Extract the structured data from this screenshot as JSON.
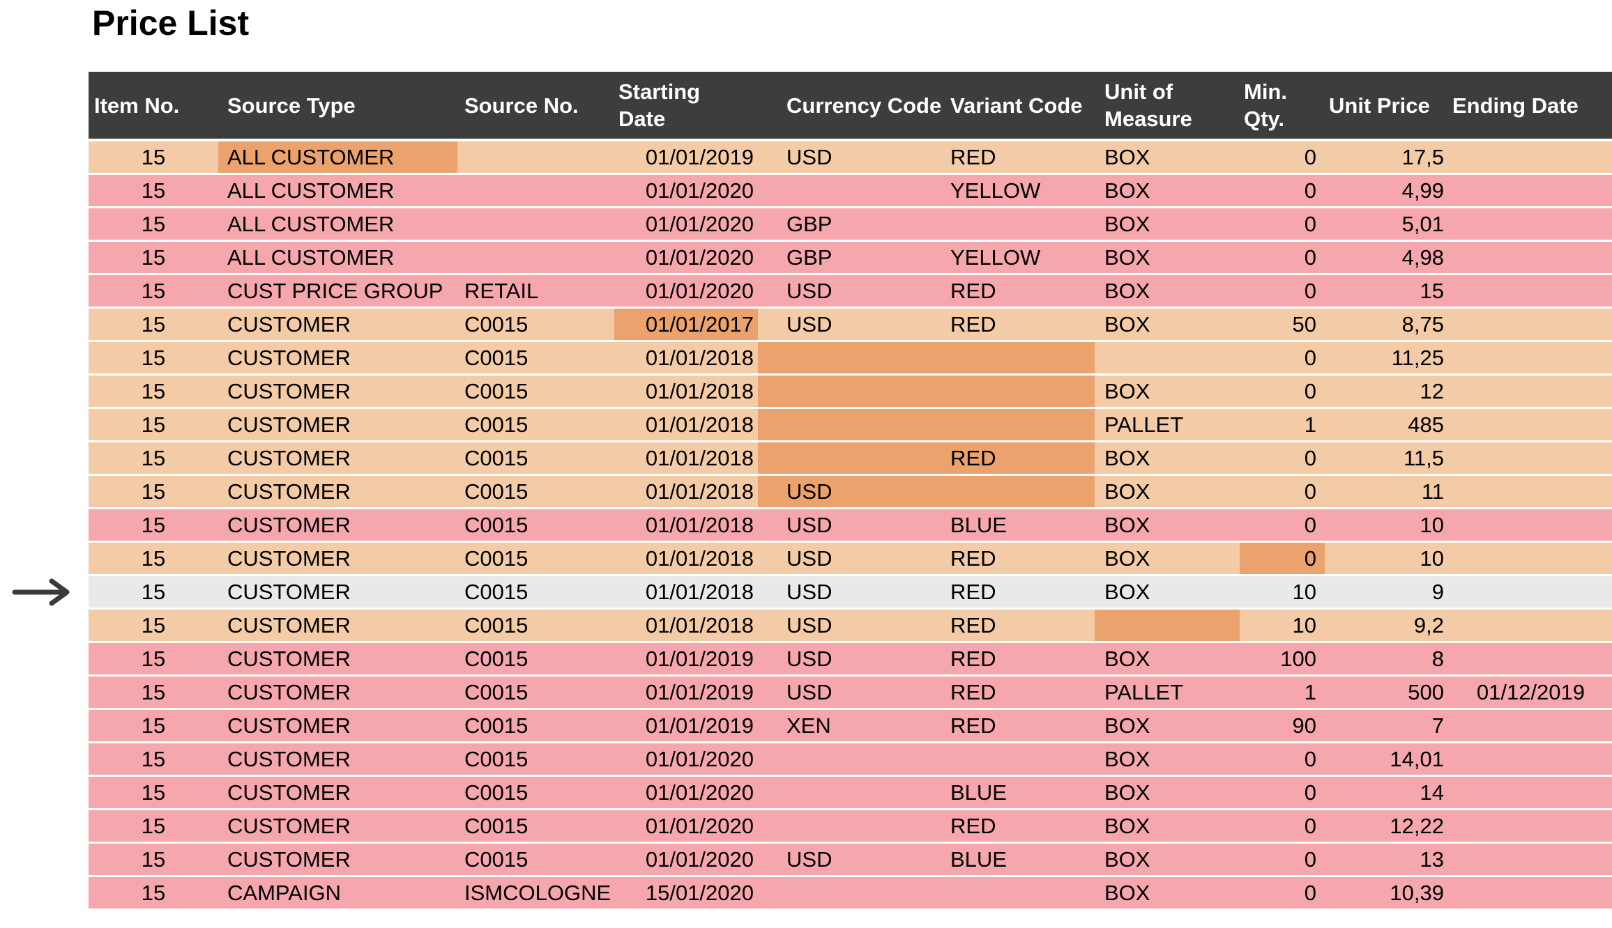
{
  "page_title": "Price List",
  "colors": {
    "peach": "#f3cba7",
    "pink": "#f5a7ad",
    "orange": "#eba26c",
    "gray": "#e9e9e9",
    "header_bg": "#3d3d3d",
    "header_text": "#ffffff",
    "arrow": "#3a3a3a"
  },
  "annotations": {
    "left_arrow_icon": "right-pointing-arrow",
    "right_arrow_icon": "left-pointing-arrow",
    "marked_row_index": 14
  },
  "table": {
    "columns": [
      {
        "key": "item_no",
        "label": "Item No."
      },
      {
        "key": "source_type",
        "label": "Source Type"
      },
      {
        "key": "source_no",
        "label": "Source No."
      },
      {
        "key": "starting_date",
        "label": "Starting Date"
      },
      {
        "key": "currency_code",
        "label": "Currency Code"
      },
      {
        "key": "variant_code",
        "label": "Variant Code"
      },
      {
        "key": "unit_of_measure",
        "label": "Unit of Measure"
      },
      {
        "key": "min_qty",
        "label": "Min. Qty."
      },
      {
        "key": "unit_price",
        "label": "Unit Price"
      },
      {
        "key": "ending_date",
        "label": "Ending Date"
      }
    ],
    "rows": [
      {
        "bg": "peach",
        "hl": [
          "source_type"
        ],
        "marked": false,
        "cells": {
          "item_no": "15",
          "source_type": "ALL CUSTOMER",
          "source_no": "",
          "starting_date": "01/01/2019",
          "currency_code": "USD",
          "variant_code": "RED",
          "unit_of_measure": "BOX",
          "min_qty": "0",
          "unit_price": "17,5",
          "ending_date": ""
        }
      },
      {
        "bg": "pink",
        "hl": [],
        "marked": false,
        "cells": {
          "item_no": "15",
          "source_type": "ALL CUSTOMER",
          "source_no": "",
          "starting_date": "01/01/2020",
          "currency_code": "",
          "variant_code": "YELLOW",
          "unit_of_measure": "BOX",
          "min_qty": "0",
          "unit_price": "4,99",
          "ending_date": ""
        }
      },
      {
        "bg": "pink",
        "hl": [],
        "marked": false,
        "cells": {
          "item_no": "15",
          "source_type": "ALL CUSTOMER",
          "source_no": "",
          "starting_date": "01/01/2020",
          "currency_code": "GBP",
          "variant_code": "",
          "unit_of_measure": "BOX",
          "min_qty": "0",
          "unit_price": "5,01",
          "ending_date": ""
        }
      },
      {
        "bg": "pink",
        "hl": [],
        "marked": false,
        "cells": {
          "item_no": "15",
          "source_type": "ALL CUSTOMER",
          "source_no": "",
          "starting_date": "01/01/2020",
          "currency_code": "GBP",
          "variant_code": "YELLOW",
          "unit_of_measure": "BOX",
          "min_qty": "0",
          "unit_price": "4,98",
          "ending_date": ""
        }
      },
      {
        "bg": "pink",
        "hl": [],
        "marked": false,
        "cells": {
          "item_no": "15",
          "source_type": "CUST PRICE GROUP",
          "source_no": "RETAIL",
          "starting_date": "01/01/2020",
          "currency_code": "USD",
          "variant_code": "RED",
          "unit_of_measure": "BOX",
          "min_qty": "0",
          "unit_price": "15",
          "ending_date": ""
        }
      },
      {
        "bg": "peach",
        "hl": [
          "starting_date"
        ],
        "marked": false,
        "cells": {
          "item_no": "15",
          "source_type": "CUSTOMER",
          "source_no": "C0015",
          "starting_date": "01/01/2017",
          "currency_code": "USD",
          "variant_code": "RED",
          "unit_of_measure": "BOX",
          "min_qty": "50",
          "unit_price": "8,75",
          "ending_date": ""
        }
      },
      {
        "bg": "peach",
        "hl": [
          "currency_code",
          "variant_code"
        ],
        "marked": false,
        "cells": {
          "item_no": "15",
          "source_type": "CUSTOMER",
          "source_no": "C0015",
          "starting_date": "01/01/2018",
          "currency_code": "",
          "variant_code": "",
          "unit_of_measure": "",
          "min_qty": "0",
          "unit_price": "11,25",
          "ending_date": ""
        }
      },
      {
        "bg": "peach",
        "hl": [
          "currency_code",
          "variant_code"
        ],
        "marked": false,
        "cells": {
          "item_no": "15",
          "source_type": "CUSTOMER",
          "source_no": "C0015",
          "starting_date": "01/01/2018",
          "currency_code": "",
          "variant_code": "",
          "unit_of_measure": "BOX",
          "min_qty": "0",
          "unit_price": "12",
          "ending_date": ""
        }
      },
      {
        "bg": "peach",
        "hl": [
          "currency_code",
          "variant_code"
        ],
        "marked": false,
        "cells": {
          "item_no": "15",
          "source_type": "CUSTOMER",
          "source_no": "C0015",
          "starting_date": "01/01/2018",
          "currency_code": "",
          "variant_code": "",
          "unit_of_measure": "PALLET",
          "min_qty": "1",
          "unit_price": "485",
          "ending_date": ""
        }
      },
      {
        "bg": "peach",
        "hl": [
          "currency_code",
          "variant_code"
        ],
        "marked": false,
        "cells": {
          "item_no": "15",
          "source_type": "CUSTOMER",
          "source_no": "C0015",
          "starting_date": "01/01/2018",
          "currency_code": "",
          "variant_code": "RED",
          "unit_of_measure": "BOX",
          "min_qty": "0",
          "unit_price": "11,5",
          "ending_date": ""
        }
      },
      {
        "bg": "peach",
        "hl": [
          "currency_code",
          "variant_code"
        ],
        "marked": false,
        "cells": {
          "item_no": "15",
          "source_type": "CUSTOMER",
          "source_no": "C0015",
          "starting_date": "01/01/2018",
          "currency_code": "USD",
          "variant_code": "",
          "unit_of_measure": "BOX",
          "min_qty": "0",
          "unit_price": "11",
          "ending_date": ""
        }
      },
      {
        "bg": "pink",
        "hl": [],
        "marked": false,
        "cells": {
          "item_no": "15",
          "source_type": "CUSTOMER",
          "source_no": "C0015",
          "starting_date": "01/01/2018",
          "currency_code": "USD",
          "variant_code": "BLUE",
          "unit_of_measure": "BOX",
          "min_qty": "0",
          "unit_price": "10",
          "ending_date": ""
        }
      },
      {
        "bg": "peach",
        "hl": [
          "min_qty"
        ],
        "marked": false,
        "cells": {
          "item_no": "15",
          "source_type": "CUSTOMER",
          "source_no": "C0015",
          "starting_date": "01/01/2018",
          "currency_code": "USD",
          "variant_code": "RED",
          "unit_of_measure": "BOX",
          "min_qty": "0",
          "unit_price": "10",
          "ending_date": ""
        }
      },
      {
        "bg": "gray",
        "hl": [],
        "marked": true,
        "cells": {
          "item_no": "15",
          "source_type": "CUSTOMER",
          "source_no": "C0015",
          "starting_date": "01/01/2018",
          "currency_code": "USD",
          "variant_code": "RED",
          "unit_of_measure": "BOX",
          "min_qty": "10",
          "unit_price": "9",
          "ending_date": ""
        }
      },
      {
        "bg": "peach",
        "hl": [
          "unit_of_measure"
        ],
        "marked": false,
        "cells": {
          "item_no": "15",
          "source_type": "CUSTOMER",
          "source_no": "C0015",
          "starting_date": "01/01/2018",
          "currency_code": "USD",
          "variant_code": "RED",
          "unit_of_measure": "",
          "min_qty": "10",
          "unit_price": "9,2",
          "ending_date": ""
        }
      },
      {
        "bg": "pink",
        "hl": [],
        "marked": false,
        "cells": {
          "item_no": "15",
          "source_type": "CUSTOMER",
          "source_no": "C0015",
          "starting_date": "01/01/2019",
          "currency_code": "USD",
          "variant_code": "RED",
          "unit_of_measure": "BOX",
          "min_qty": "100",
          "unit_price": "8",
          "ending_date": ""
        }
      },
      {
        "bg": "pink",
        "hl": [],
        "marked": false,
        "cells": {
          "item_no": "15",
          "source_type": "CUSTOMER",
          "source_no": "C0015",
          "starting_date": "01/01/2019",
          "currency_code": "USD",
          "variant_code": "RED",
          "unit_of_measure": "PALLET",
          "min_qty": "1",
          "unit_price": "500",
          "ending_date": "01/12/2019"
        }
      },
      {
        "bg": "pink",
        "hl": [],
        "marked": false,
        "cells": {
          "item_no": "15",
          "source_type": "CUSTOMER",
          "source_no": "C0015",
          "starting_date": "01/01/2019",
          "currency_code": "XEN",
          "variant_code": "RED",
          "unit_of_measure": "BOX",
          "min_qty": "90",
          "unit_price": "7",
          "ending_date": ""
        }
      },
      {
        "bg": "pink",
        "hl": [],
        "marked": false,
        "cells": {
          "item_no": "15",
          "source_type": "CUSTOMER",
          "source_no": "C0015",
          "starting_date": "01/01/2020",
          "currency_code": "",
          "variant_code": "",
          "unit_of_measure": "BOX",
          "min_qty": "0",
          "unit_price": "14,01",
          "ending_date": ""
        }
      },
      {
        "bg": "pink",
        "hl": [],
        "marked": false,
        "cells": {
          "item_no": "15",
          "source_type": "CUSTOMER",
          "source_no": "C0015",
          "starting_date": "01/01/2020",
          "currency_code": "",
          "variant_code": "BLUE",
          "unit_of_measure": "BOX",
          "min_qty": "0",
          "unit_price": "14",
          "ending_date": ""
        }
      },
      {
        "bg": "pink",
        "hl": [],
        "marked": false,
        "cells": {
          "item_no": "15",
          "source_type": "CUSTOMER",
          "source_no": "C0015",
          "starting_date": "01/01/2020",
          "currency_code": "",
          "variant_code": "RED",
          "unit_of_measure": "BOX",
          "min_qty": "0",
          "unit_price": "12,22",
          "ending_date": ""
        }
      },
      {
        "bg": "pink",
        "hl": [],
        "marked": false,
        "cells": {
          "item_no": "15",
          "source_type": "CUSTOMER",
          "source_no": "C0015",
          "starting_date": "01/01/2020",
          "currency_code": "USD",
          "variant_code": "BLUE",
          "unit_of_measure": "BOX",
          "min_qty": "0",
          "unit_price": "13",
          "ending_date": ""
        }
      },
      {
        "bg": "pink",
        "hl": [],
        "marked": false,
        "cells": {
          "item_no": "15",
          "source_type": "CAMPAIGN",
          "source_no": "ISMCOLOGNE",
          "starting_date": "15/01/2020",
          "currency_code": "",
          "variant_code": "",
          "unit_of_measure": "BOX",
          "min_qty": "0",
          "unit_price": "10,39",
          "ending_date": ""
        }
      }
    ]
  }
}
